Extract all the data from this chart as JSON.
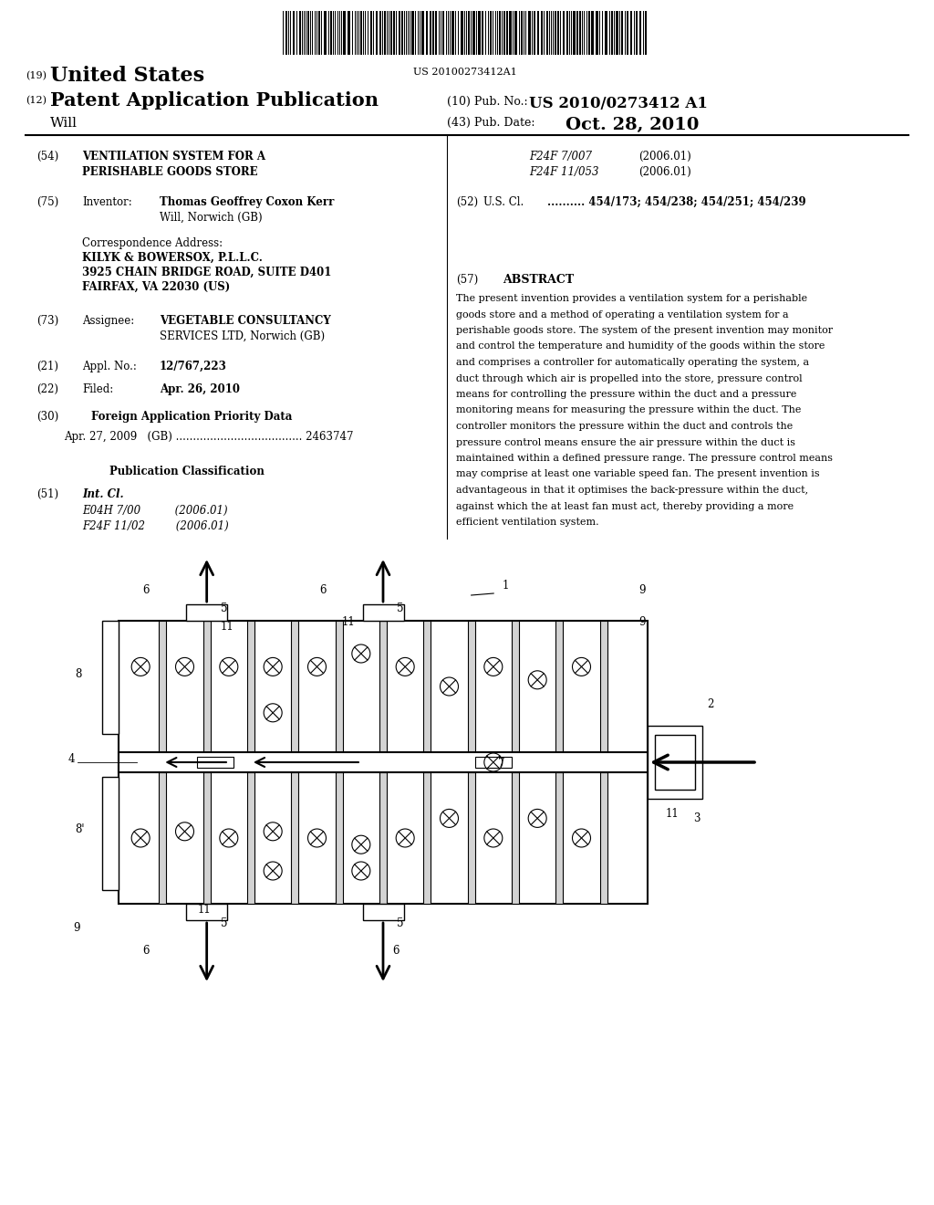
{
  "background_color": "#ffffff",
  "barcode_text": "US 20100273412A1",
  "header_19": "(19)",
  "header_19_text": "United States",
  "header_12": "(12)",
  "header_12_text": "Patent Application Publication",
  "header_will": "Will",
  "header_10": "(10) Pub. No.:",
  "header_10_val": "US 2010/0273412 A1",
  "header_43": "(43) Pub. Date:",
  "header_43_val": "Oct. 28, 2010",
  "field_54_label": "(54)",
  "field_54_text": "VENTILATION SYSTEM FOR A\nPERISHABLE GOODS STORE",
  "field_75_label": "(75)",
  "field_75_name": "Inventor:",
  "field_75_val": "Thomas Geoffrey Coxon Kerr\nWill, Norwich (GB)",
  "corr_label": "Correspondence Address:",
  "corr_text": "KILYK & BOWERSOX, P.L.L.C.\n3925 CHAIN BRIDGE ROAD, SUITE D401\nFAIRFAX, VA 22030 (US)",
  "field_73_label": "(73)",
  "field_73_name": "Assignee:",
  "field_73_val": "VEGETABLE CONSULTANCY\nSERVICES LTD, Norwich (GB)",
  "field_21_label": "(21)",
  "field_21_name": "Appl. No.:",
  "field_21_val": "12/767,223",
  "field_22_label": "(22)",
  "field_22_name": "Filed:",
  "field_22_val": "Apr. 26, 2010",
  "field_30_label": "(30)",
  "field_30_name": "Foreign Application Priority Data",
  "field_30_val": "Apr. 27, 2009   (GB) ..................................... 2463747",
  "pub_class_title": "Publication Classification",
  "field_51_label": "(51)",
  "field_51_name": "Int. Cl.",
  "field_51_val1": "E04H 7/00          (2006.01)",
  "field_51_val2": "F24F 11/02         (2006.01)",
  "field_ipc1": "F24F 7/007",
  "field_ipc1_year": "(2006.01)",
  "field_ipc2": "F24F 11/053",
  "field_ipc2_year": "(2006.01)",
  "field_52_label": "(52)",
  "field_52_name": "U.S. Cl.",
  "field_52_val": "454/173; 454/238; 454/251; 454/239",
  "field_57_label": "(57)",
  "field_57_title": "ABSTRACT",
  "abstract_text": "The present invention provides a ventilation system for a perishable goods store and a method of operating a ventilation system for a perishable goods store. The system of the present invention may monitor and control the temperature and humidity of the goods within the store and comprises a controller for automatically operating the system, a duct through which air is propelled into the store, pressure control means for controlling the pressure within the duct and a pressure monitoring means for measuring the pressure within the duct. The controller monitors the pressure within the duct and controls the pressure control means ensure the air pressure within the duct is maintained within a defined pressure range. The pressure control means may comprise at least one variable speed fan. The present invention is advantageous in that it optimises the back-pressure within the duct, against which the at least fan must act, thereby providing a more efficient ventilation system."
}
